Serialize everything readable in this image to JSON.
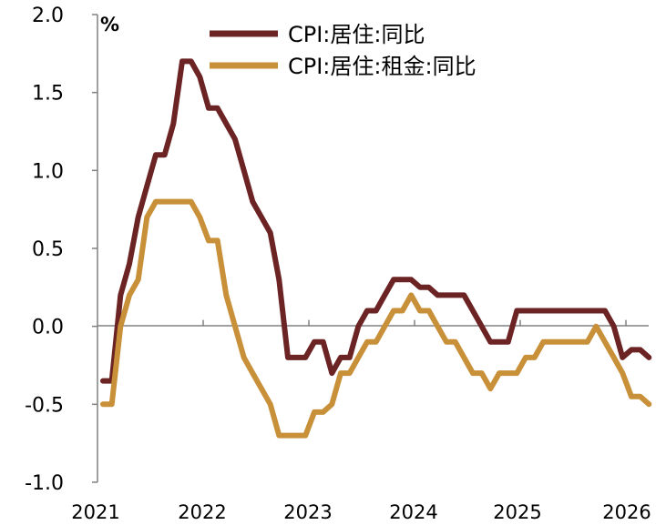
{
  "chart_data": {
    "type": "line",
    "ylabel": "%",
    "ylim": [
      -1.0,
      2.0
    ],
    "y_ticks": [
      "2.0",
      "1.5",
      "1.0",
      "0.5",
      "0.0",
      "-0.5",
      "-1.0"
    ],
    "x_ticks": [
      "2021",
      "2022",
      "2023",
      "2024",
      "2025",
      "2026"
    ],
    "legend_position": "top-center",
    "grid": false,
    "series": [
      {
        "name": "CPI:居住:同比",
        "color": "#6b2323",
        "points": [
          [
            "2021-01",
            -0.35
          ],
          [
            "2021-02",
            -0.35
          ],
          [
            "2021-03",
            0.2
          ],
          [
            "2021-04",
            0.4
          ],
          [
            "2021-05",
            0.7
          ],
          [
            "2021-06",
            0.9
          ],
          [
            "2021-07",
            1.1
          ],
          [
            "2021-08",
            1.1
          ],
          [
            "2021-09",
            1.3
          ],
          [
            "2021-10",
            1.7
          ],
          [
            "2021-11",
            1.7
          ],
          [
            "2021-12",
            1.6
          ],
          [
            "2022-01",
            1.4
          ],
          [
            "2022-02",
            1.4
          ],
          [
            "2022-03",
            1.3
          ],
          [
            "2022-04",
            1.2
          ],
          [
            "2022-05",
            1.0
          ],
          [
            "2022-06",
            0.8
          ],
          [
            "2022-07",
            0.7
          ],
          [
            "2022-08",
            0.6
          ],
          [
            "2022-09",
            0.3
          ],
          [
            "2022-10",
            -0.2
          ],
          [
            "2022-11",
            -0.2
          ],
          [
            "2022-12",
            -0.2
          ],
          [
            "2023-01",
            -0.1
          ],
          [
            "2023-02",
            -0.1
          ],
          [
            "2023-03",
            -0.3
          ],
          [
            "2023-04",
            -0.2
          ],
          [
            "2023-05",
            -0.2
          ],
          [
            "2023-06",
            0.0
          ],
          [
            "2023-07",
            0.1
          ],
          [
            "2023-08",
            0.1
          ],
          [
            "2023-09",
            0.2
          ],
          [
            "2023-10",
            0.3
          ],
          [
            "2023-11",
            0.3
          ],
          [
            "2023-12",
            0.3
          ],
          [
            "2024-01",
            0.25
          ],
          [
            "2024-02",
            0.25
          ],
          [
            "2024-03",
            0.2
          ],
          [
            "2024-04",
            0.2
          ],
          [
            "2024-05",
            0.2
          ],
          [
            "2024-06",
            0.2
          ],
          [
            "2024-07",
            0.1
          ],
          [
            "2024-08",
            0.0
          ],
          [
            "2024-09",
            -0.1
          ],
          [
            "2024-10",
            -0.1
          ],
          [
            "2024-11",
            -0.1
          ],
          [
            "2024-12",
            0.1
          ],
          [
            "2025-01",
            0.1
          ],
          [
            "2025-02",
            0.1
          ],
          [
            "2025-03",
            0.1
          ],
          [
            "2025-04",
            0.1
          ],
          [
            "2025-05",
            0.1
          ],
          [
            "2025-06",
            0.1
          ],
          [
            "2025-07",
            0.1
          ],
          [
            "2025-08",
            0.1
          ],
          [
            "2025-09",
            0.1
          ],
          [
            "2025-10",
            0.1
          ],
          [
            "2025-11",
            0.0
          ],
          [
            "2025-12",
            -0.2
          ],
          [
            "2026-01",
            -0.15
          ],
          [
            "2026-02",
            -0.15
          ],
          [
            "2026-03",
            -0.2
          ]
        ]
      },
      {
        "name": "CPI:居住:租金:同比",
        "color": "#c9903a",
        "points": [
          [
            "2021-01",
            -0.5
          ],
          [
            "2021-02",
            -0.5
          ],
          [
            "2021-03",
            0.0
          ],
          [
            "2021-04",
            0.2
          ],
          [
            "2021-05",
            0.3
          ],
          [
            "2021-06",
            0.7
          ],
          [
            "2021-07",
            0.8
          ],
          [
            "2021-08",
            0.8
          ],
          [
            "2021-09",
            0.8
          ],
          [
            "2021-10",
            0.8
          ],
          [
            "2021-11",
            0.8
          ],
          [
            "2021-12",
            0.7
          ],
          [
            "2022-01",
            0.55
          ],
          [
            "2022-02",
            0.55
          ],
          [
            "2022-03",
            0.2
          ],
          [
            "2022-04",
            0.0
          ],
          [
            "2022-05",
            -0.2
          ],
          [
            "2022-06",
            -0.3
          ],
          [
            "2022-07",
            -0.4
          ],
          [
            "2022-08",
            -0.5
          ],
          [
            "2022-09",
            -0.7
          ],
          [
            "2022-10",
            -0.7
          ],
          [
            "2022-11",
            -0.7
          ],
          [
            "2022-12",
            -0.7
          ],
          [
            "2023-01",
            -0.55
          ],
          [
            "2023-02",
            -0.55
          ],
          [
            "2023-03",
            -0.5
          ],
          [
            "2023-04",
            -0.3
          ],
          [
            "2023-05",
            -0.3
          ],
          [
            "2023-06",
            -0.2
          ],
          [
            "2023-07",
            -0.1
          ],
          [
            "2023-08",
            -0.1
          ],
          [
            "2023-09",
            0.0
          ],
          [
            "2023-10",
            0.1
          ],
          [
            "2023-11",
            0.1
          ],
          [
            "2023-12",
            0.2
          ],
          [
            "2024-01",
            0.1
          ],
          [
            "2024-02",
            0.1
          ],
          [
            "2024-03",
            0.0
          ],
          [
            "2024-04",
            -0.1
          ],
          [
            "2024-05",
            -0.1
          ],
          [
            "2024-06",
            -0.2
          ],
          [
            "2024-07",
            -0.3
          ],
          [
            "2024-08",
            -0.3
          ],
          [
            "2024-09",
            -0.4
          ],
          [
            "2024-10",
            -0.3
          ],
          [
            "2024-11",
            -0.3
          ],
          [
            "2024-12",
            -0.3
          ],
          [
            "2025-01",
            -0.2
          ],
          [
            "2025-02",
            -0.2
          ],
          [
            "2025-03",
            -0.1
          ],
          [
            "2025-04",
            -0.1
          ],
          [
            "2025-05",
            -0.1
          ],
          [
            "2025-06",
            -0.1
          ],
          [
            "2025-07",
            -0.1
          ],
          [
            "2025-08",
            -0.1
          ],
          [
            "2025-09",
            0.0
          ],
          [
            "2025-10",
            -0.1
          ],
          [
            "2025-11",
            -0.2
          ],
          [
            "2025-12",
            -0.3
          ],
          [
            "2026-01",
            -0.45
          ],
          [
            "2026-02",
            -0.45
          ],
          [
            "2026-03",
            -0.5
          ]
        ]
      }
    ]
  }
}
